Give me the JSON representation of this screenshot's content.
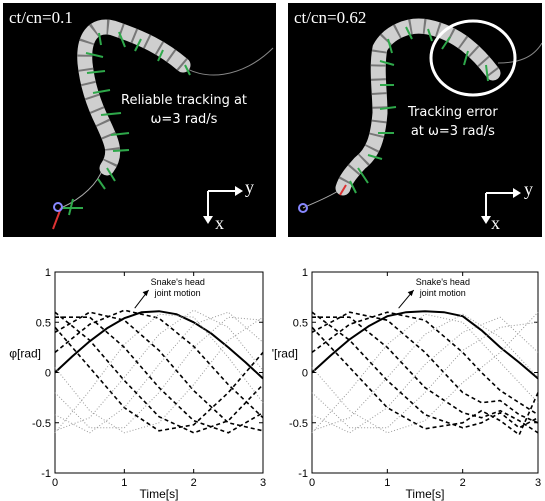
{
  "snapshots": [
    {
      "ratio_label": "ct/cn=0.1",
      "note_line1": "Reliable tracking at",
      "note_line2": "ω=3 rad/s",
      "axis_y": "y",
      "axis_x": "x"
    },
    {
      "ratio_label": "ct/cn=0.62",
      "note_line1": "Tracking error",
      "note_line2": "at ω=3 rad/s",
      "axis_y": "y",
      "axis_x": "x"
    }
  ],
  "chart_data": [
    {
      "type": "line",
      "ylabel": "φ[rad]",
      "xlabel": "Time[s]",
      "xlim": [
        0,
        3
      ],
      "ylim": [
        -1,
        1
      ],
      "xticks": [
        "0",
        "1",
        "2",
        "3"
      ],
      "yticks": [
        "1",
        "0.5",
        "0",
        "-0.5",
        "-1"
      ],
      "annotation": [
        "Snake's head",
        "joint motion"
      ],
      "series": [
        {
          "style": "solid",
          "x": [
            0,
            0.25,
            0.5,
            0.75,
            1,
            1.25,
            1.5,
            1.75,
            2,
            2.25,
            2.5,
            2.75,
            3
          ],
          "y": [
            0,
            0.16,
            0.31,
            0.44,
            0.54,
            0.6,
            0.61,
            0.58,
            0.5,
            0.39,
            0.25,
            0.1,
            -0.06
          ]
        },
        {
          "style": "dashed",
          "x": [
            0,
            0.5,
            1,
            1.5,
            2,
            2.5,
            3
          ],
          "y": [
            0.2,
            0.48,
            0.62,
            0.54,
            0.26,
            -0.12,
            -0.45
          ]
        },
        {
          "style": "dashed",
          "x": [
            0,
            0.5,
            1,
            1.5,
            2,
            2.5,
            3
          ],
          "y": [
            0.4,
            0.6,
            0.52,
            0.22,
            -0.18,
            -0.5,
            -0.58
          ]
        },
        {
          "style": "dashed",
          "x": [
            0,
            0.5,
            1,
            1.5,
            2,
            2.5,
            3
          ],
          "y": [
            0.55,
            0.55,
            0.25,
            -0.15,
            -0.48,
            -0.6,
            -0.4
          ]
        },
        {
          "style": "dashed",
          "x": [
            0,
            0.5,
            1,
            1.5,
            2,
            2.5,
            3
          ],
          "y": [
            0.6,
            0.32,
            -0.08,
            -0.44,
            -0.6,
            -0.48,
            -0.12
          ]
        },
        {
          "style": "dashed",
          "x": [
            0,
            0.5,
            1,
            1.5,
            2,
            2.5,
            3
          ],
          "y": [
            0.45,
            0.05,
            -0.35,
            -0.58,
            -0.52,
            -0.2,
            0.2
          ]
        },
        {
          "style": "dotted",
          "x": [
            0,
            0.5,
            1,
            1.5,
            2,
            2.5,
            3
          ],
          "y": [
            0.05,
            -0.38,
            -0.6,
            -0.5,
            -0.12,
            0.32,
            0.55
          ]
        },
        {
          "style": "dotted",
          "x": [
            0,
            0.5,
            1,
            1.5,
            2,
            2.5,
            3
          ],
          "y": [
            -0.2,
            -0.55,
            -0.55,
            -0.2,
            0.25,
            0.55,
            0.52
          ]
        },
        {
          "style": "dotted",
          "x": [
            0,
            0.5,
            1,
            1.5,
            2,
            2.5,
            3
          ],
          "y": [
            -0.42,
            -0.6,
            -0.35,
            0.08,
            0.48,
            0.6,
            0.3
          ]
        },
        {
          "style": "dotted",
          "x": [
            0,
            0.5,
            1,
            1.5,
            2,
            2.5,
            3
          ],
          "y": [
            -0.58,
            -0.45,
            -0.05,
            0.38,
            0.62,
            0.45,
            0.02
          ]
        },
        {
          "style": "dotted",
          "x": [
            0,
            0.5,
            1,
            1.5,
            2,
            2.5,
            3
          ],
          "y": [
            -0.6,
            -0.18,
            0.28,
            0.58,
            0.55,
            0.15,
            -0.3
          ]
        }
      ]
    },
    {
      "type": "line",
      "ylabel": "φ'[rad]",
      "xlabel": "Time[s]",
      "xlim": [
        0,
        3
      ],
      "ylim": [
        -1,
        1
      ],
      "xticks": [
        "0",
        "1",
        "2",
        "3"
      ],
      "yticks": [
        "1",
        "0.5",
        "0",
        "-0.5",
        "-1"
      ],
      "annotation": [
        "Snake's head",
        "joint motion"
      ],
      "series": [
        {
          "style": "solid",
          "x": [
            0,
            0.25,
            0.5,
            0.75,
            1,
            1.25,
            1.5,
            1.75,
            2,
            2.25,
            2.5,
            2.75,
            3
          ],
          "y": [
            0,
            0.17,
            0.33,
            0.46,
            0.56,
            0.6,
            0.61,
            0.6,
            0.56,
            0.42,
            0.25,
            0.1,
            -0.06
          ]
        },
        {
          "style": "dashed",
          "x": [
            0,
            0.5,
            1,
            1.5,
            2,
            2.25,
            2.5,
            2.75,
            3
          ],
          "y": [
            0.2,
            0.48,
            0.6,
            0.52,
            0.2,
            0.0,
            -0.18,
            -0.3,
            -0.42
          ]
        },
        {
          "style": "dashed",
          "x": [
            0,
            0.5,
            1,
            1.5,
            2,
            2.25,
            2.5,
            2.75,
            3
          ],
          "y": [
            0.4,
            0.6,
            0.52,
            0.2,
            -0.2,
            -0.3,
            -0.28,
            -0.42,
            -0.5
          ]
        },
        {
          "style": "dashed",
          "x": [
            0,
            0.5,
            1,
            1.5,
            2,
            2.25,
            2.5,
            2.75,
            3
          ],
          "y": [
            0.55,
            0.55,
            0.25,
            -0.15,
            -0.4,
            -0.45,
            -0.38,
            -0.48,
            -0.6
          ]
        },
        {
          "style": "dashed",
          "x": [
            0,
            0.5,
            1,
            1.5,
            2,
            2.25,
            2.5,
            2.75,
            3
          ],
          "y": [
            0.6,
            0.32,
            -0.08,
            -0.42,
            -0.55,
            -0.5,
            -0.4,
            -0.55,
            -0.45
          ]
        },
        {
          "style": "dashed",
          "x": [
            0,
            0.5,
            1,
            1.5,
            2,
            2.25,
            2.5,
            2.75,
            3
          ],
          "y": [
            0.45,
            0.05,
            -0.35,
            -0.56,
            -0.5,
            -0.38,
            -0.48,
            -0.62,
            -0.2
          ]
        },
        {
          "style": "dotted",
          "x": [
            0,
            0.5,
            1,
            1.5,
            2,
            2.5,
            3
          ],
          "y": [
            0.05,
            -0.38,
            -0.6,
            -0.48,
            -0.1,
            0.2,
            0.6
          ]
        },
        {
          "style": "dotted",
          "x": [
            0,
            0.5,
            1,
            1.5,
            2,
            2.5,
            3
          ],
          "y": [
            -0.2,
            -0.55,
            -0.55,
            -0.2,
            0.22,
            0.45,
            0.5
          ]
        },
        {
          "style": "dotted",
          "x": [
            0,
            0.5,
            1,
            1.5,
            2,
            2.5,
            3
          ],
          "y": [
            -0.42,
            -0.6,
            -0.35,
            0.08,
            0.4,
            0.55,
            0.2
          ]
        },
        {
          "style": "dotted",
          "x": [
            0,
            0.5,
            1,
            1.5,
            2,
            2.5,
            3
          ],
          "y": [
            -0.58,
            -0.45,
            -0.05,
            0.38,
            0.58,
            0.35,
            -0.05
          ]
        },
        {
          "style": "dotted",
          "x": [
            0,
            0.5,
            1,
            1.5,
            2,
            2.5,
            3
          ],
          "y": [
            -0.6,
            -0.18,
            0.28,
            0.58,
            0.5,
            0.1,
            -0.3
          ]
        }
      ]
    }
  ]
}
